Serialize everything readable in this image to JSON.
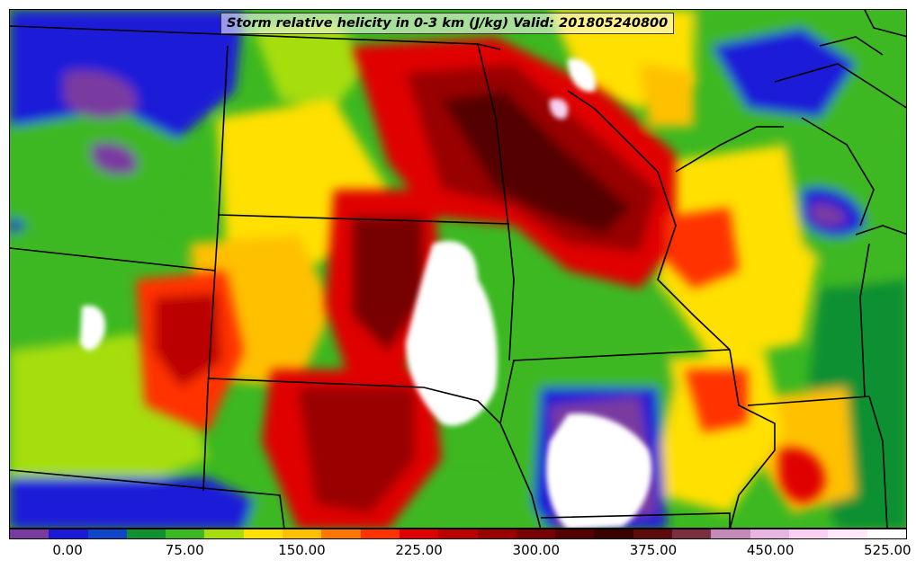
{
  "title": "Storm relative helicity in 0-3 km (J/kg) Valid: 201805240800",
  "colorbar": {
    "colors": [
      "#7a3aa0",
      "#1a1ad8",
      "#0d47c8",
      "#109030",
      "#3cb821",
      "#a6dd0c",
      "#ffe000",
      "#ffc000",
      "#ff7700",
      "#ff3300",
      "#e00000",
      "#bb0000",
      "#990000",
      "#770000",
      "#550000",
      "#3a0000",
      "#5e0a0a",
      "#7a3040",
      "#c48ab8",
      "#e6b5e0",
      "#f8d0f0",
      "#ffe8fa",
      "#ffffff"
    ],
    "tick_labels": [
      "0.00",
      "75.00",
      "150.00",
      "225.00",
      "300.00",
      "375.00",
      "450.00",
      "525.00"
    ],
    "tick_values": [
      0,
      75,
      150,
      225,
      300,
      375,
      450,
      525
    ],
    "range": [
      -37.5,
      537.5
    ]
  },
  "map": {
    "field": "Storm relative helicity 0-3 km",
    "boundaries_color": "#000000"
  }
}
